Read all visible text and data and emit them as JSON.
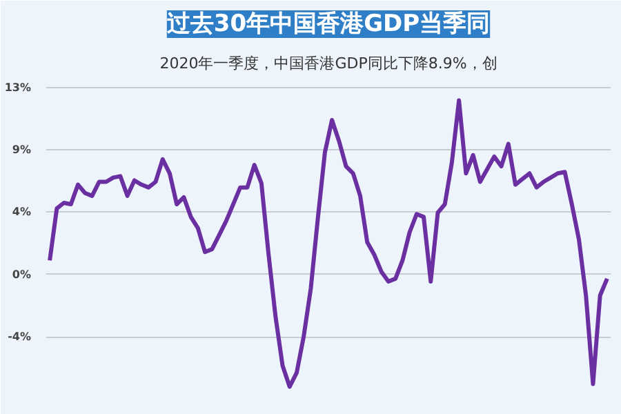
{
  "chart_data": {
    "type": "line",
    "title": "过去30年中国香港GDP当季同",
    "subtitle": "2020年一季度，中国香港GDP同比下降8.9%，创",
    "categories": [
      null,
      null,
      null,
      null,
      null,
      null,
      null,
      null,
      null,
      null,
      null,
      null,
      null,
      null,
      null,
      null,
      null,
      null,
      null,
      null,
      null,
      null,
      null,
      null,
      null,
      null,
      null,
      null,
      null,
      null,
      null,
      null,
      null,
      null,
      null,
      null,
      null,
      null,
      null,
      null,
      null,
      null,
      null,
      null,
      null,
      null,
      null,
      null,
      null,
      null,
      null,
      null,
      null,
      null,
      null,
      null,
      null,
      null,
      null,
      null,
      null,
      null,
      null,
      null,
      null,
      null,
      null,
      null,
      null,
      null,
      null,
      null,
      null,
      null,
      null,
      null,
      null,
      null,
      null,
      null
    ],
    "series": [
      {
        "color": "#6a2fa0",
        "values": [
          1.0,
          4.7,
          5.1,
          5.0,
          6.4,
          5.8,
          5.6,
          6.6,
          6.6,
          6.9,
          7.0,
          5.6,
          6.7,
          6.4,
          6.2,
          6.6,
          8.2,
          7.2,
          5.0,
          5.5,
          4.1,
          3.3,
          1.6,
          1.8,
          2.8,
          3.8,
          5.0,
          6.2,
          6.2,
          7.8,
          6.5,
          1.5,
          -3.0,
          -6.5,
          -8.0,
          -7.0,
          -4.4,
          -1.0,
          4.0,
          8.7,
          11.0,
          9.5,
          7.7,
          7.2,
          5.6,
          2.3,
          1.4,
          0.2,
          -0.5,
          -0.3,
          1.0,
          3.0,
          4.3,
          4.1,
          -0.5,
          4.4,
          5.0,
          8.0,
          12.4,
          7.2,
          8.5,
          6.6,
          7.5,
          8.4,
          7.7,
          9.3,
          6.4,
          6.8,
          7.2,
          6.2,
          6.6,
          6.9,
          7.2,
          7.3,
          5.0,
          2.5,
          -1.5,
          -7.8,
          -1.5,
          -0.3
        ]
      }
    ],
    "ylim": [
      -9.5,
      13.9
    ],
    "yticks": [
      {
        "value": -4.44,
        "label": "-4%"
      },
      {
        "value": 0,
        "label": "0%"
      },
      {
        "value": 4.44,
        "label": "4%"
      },
      {
        "value": 8.89,
        "label": "9%"
      },
      {
        "value": 13.33,
        "label": "13%"
      }
    ],
    "grid": "y",
    "marker": "none",
    "line_style": "solid"
  }
}
